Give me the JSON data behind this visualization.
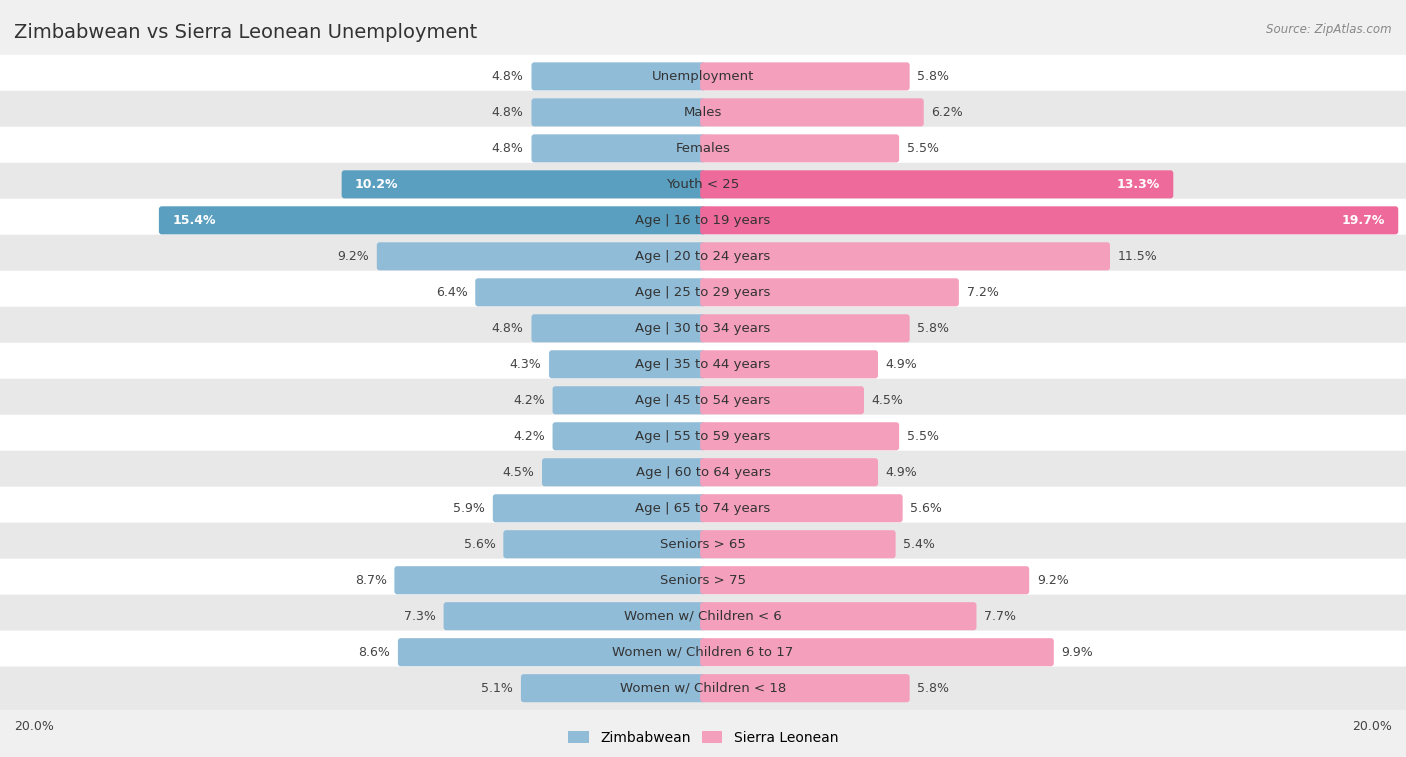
{
  "title": "Zimbabwean vs Sierra Leonean Unemployment",
  "source": "Source: ZipAtlas.com",
  "categories": [
    "Unemployment",
    "Males",
    "Females",
    "Youth < 25",
    "Age | 16 to 19 years",
    "Age | 20 to 24 years",
    "Age | 25 to 29 years",
    "Age | 30 to 34 years",
    "Age | 35 to 44 years",
    "Age | 45 to 54 years",
    "Age | 55 to 59 years",
    "Age | 60 to 64 years",
    "Age | 65 to 74 years",
    "Seniors > 65",
    "Seniors > 75",
    "Women w/ Children < 6",
    "Women w/ Children 6 to 17",
    "Women w/ Children < 18"
  ],
  "zimbabwean": [
    4.8,
    4.8,
    4.8,
    10.2,
    15.4,
    9.2,
    6.4,
    4.8,
    4.3,
    4.2,
    4.2,
    4.5,
    5.9,
    5.6,
    8.7,
    7.3,
    8.6,
    5.1
  ],
  "sierra_leonean": [
    5.8,
    6.2,
    5.5,
    13.3,
    19.7,
    11.5,
    7.2,
    5.8,
    4.9,
    4.5,
    5.5,
    4.9,
    5.6,
    5.4,
    9.2,
    7.7,
    9.9,
    5.8
  ],
  "zim_color": "#90bcd8",
  "sl_color": "#f4a0bc",
  "zim_dark_color": "#5a9fc0",
  "sl_dark_color": "#ee6a9a",
  "highlight_indices": [
    3,
    4
  ],
  "background_color": "#f0f0f0",
  "row_colors": [
    "#ffffff",
    "#e8e8e8"
  ],
  "max_value": 20.0,
  "bar_height": 0.62,
  "title_fontsize": 14,
  "label_fontsize": 9.5,
  "value_fontsize": 9.0,
  "legend_fontsize": 10
}
